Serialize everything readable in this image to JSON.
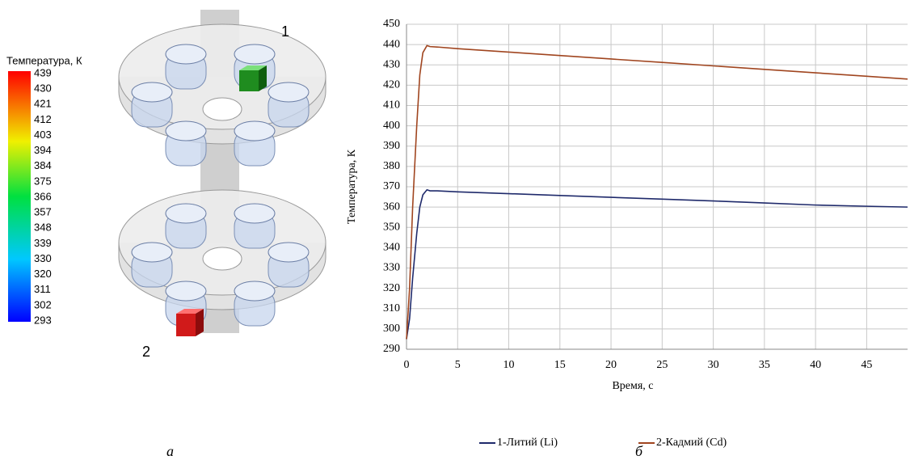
{
  "colorbar": {
    "title": "Температура, К",
    "ticks": [
      "439",
      "430",
      "421",
      "412",
      "403",
      "394",
      "384",
      "375",
      "366",
      "357",
      "348",
      "339",
      "330",
      "320",
      "311",
      "302",
      "293"
    ]
  },
  "render": {
    "labels": [
      "1",
      "2"
    ]
  },
  "panel_labels": [
    "а",
    "б"
  ],
  "chart_data": {
    "type": "line",
    "x_label": "Время, с",
    "y_label": "Температура, К",
    "x": [
      0,
      0.3,
      0.6,
      1,
      1.3,
      1.6,
      2,
      2.3,
      3,
      5,
      10,
      15,
      20,
      25,
      30,
      35,
      40,
      45,
      49
    ],
    "series": [
      {
        "name": "1-Литий (Li)",
        "color": "#1f2a6b",
        "values": [
          295,
          305,
          325,
          347,
          360,
          366,
          368.5,
          368,
          368,
          367.5,
          366.6,
          365.7,
          364.8,
          363.9,
          363,
          362,
          361,
          360.4,
          360
        ]
      },
      {
        "name": "2-Кадмий (Cd)",
        "color": "#a0451f",
        "values": [
          295,
          320,
          360,
          400,
          425,
          436,
          439.5,
          439,
          438.8,
          438,
          436.3,
          434.6,
          432.9,
          431.2,
          429.5,
          427.8,
          426.1,
          424.4,
          423
        ]
      }
    ],
    "xlim": [
      0,
      49
    ],
    "xticks": [
      0,
      5,
      10,
      15,
      20,
      25,
      30,
      35,
      40,
      45
    ],
    "ylim": [
      290,
      450
    ],
    "yticks": [
      290,
      300,
      310,
      320,
      330,
      340,
      350,
      360,
      370,
      380,
      390,
      400,
      410,
      420,
      430,
      440,
      450
    ],
    "grid": true
  }
}
